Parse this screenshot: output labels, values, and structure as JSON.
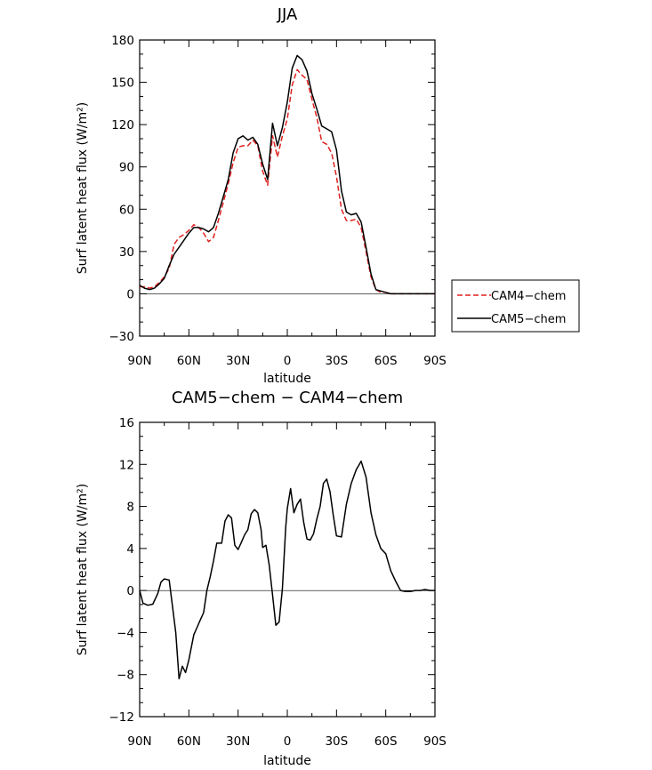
{
  "chart_data": [
    {
      "type": "line",
      "title": "JJA",
      "xlabel": "latitude",
      "ylabel": "Surf latent heat flux (W/m²)",
      "xlim": [
        90,
        -90
      ],
      "ylim": [
        -30,
        180
      ],
      "x_ticks": [
        90,
        60,
        30,
        0,
        -30,
        -60,
        -90
      ],
      "x_tick_labels": [
        "90N",
        "60N",
        "30N",
        "0",
        "30S",
        "60S",
        "90S"
      ],
      "y_ticks": [
        -30,
        0,
        30,
        60,
        90,
        120,
        150,
        180
      ],
      "y_tick_labels": [
        "−30",
        "0",
        "30",
        "60",
        "90",
        "120",
        "150",
        "180"
      ],
      "legend_position": "outside-right",
      "series": [
        {
          "name": "CAM4−chem",
          "color": "#e02020",
          "dash": "dashed",
          "x": [
            90,
            87,
            84,
            81,
            78,
            75,
            72,
            69,
            66,
            63,
            60,
            57,
            54,
            51,
            48,
            45,
            42,
            39,
            36,
            33,
            30,
            27,
            24,
            21,
            18,
            15,
            12,
            9,
            6,
            3,
            0,
            -3,
            -6,
            -9,
            -12,
            -15,
            -18,
            -21,
            -24,
            -27,
            -30,
            -33,
            -36,
            -39,
            -42,
            -45,
            -48,
            -51,
            -54,
            -57,
            -60,
            -63,
            -66,
            -69,
            -72,
            -75,
            -78,
            -81,
            -84,
            -87,
            -90
          ],
          "y": [
            5,
            5,
            4,
            5,
            8,
            12,
            18,
            35,
            40,
            42,
            45,
            49,
            47,
            43,
            37,
            40,
            52,
            65,
            78,
            93,
            104,
            105,
            105,
            109,
            105,
            87,
            77,
            112,
            97,
            112,
            124,
            148,
            159,
            155,
            152,
            138,
            125,
            108,
            106,
            100,
            83,
            60,
            52,
            52,
            53,
            47,
            30,
            12,
            3,
            1,
            1,
            0,
            0,
            0,
            0,
            0,
            0,
            0,
            0,
            0,
            0
          ]
        },
        {
          "name": "CAM5−chem",
          "color": "#000000",
          "dash": "solid",
          "x": [
            90,
            87,
            84,
            81,
            78,
            75,
            72,
            69,
            66,
            63,
            60,
            57,
            54,
            51,
            48,
            45,
            42,
            39,
            36,
            33,
            30,
            27,
            24,
            21,
            18,
            15,
            12,
            9,
            6,
            3,
            0,
            -3,
            -6,
            -9,
            -12,
            -15,
            -18,
            -21,
            -24,
            -27,
            -30,
            -33,
            -36,
            -39,
            -42,
            -45,
            -48,
            -51,
            -54,
            -57,
            -60,
            -63,
            -66,
            -69,
            -72,
            -75,
            -78,
            -81,
            -84,
            -87,
            -90
          ],
          "y": [
            6,
            4,
            3,
            4,
            7,
            11,
            20,
            28,
            33,
            38,
            43,
            47,
            47,
            46,
            44,
            47,
            57,
            69,
            81,
            100,
            110,
            112,
            109,
            111,
            106,
            92,
            81,
            121,
            105,
            118,
            136,
            160,
            169,
            166,
            158,
            142,
            131,
            119,
            117,
            115,
            102,
            73,
            58,
            56,
            57,
            51,
            33,
            14,
            3,
            2,
            1,
            0,
            0,
            0,
            0,
            0,
            0,
            0,
            0,
            0,
            0
          ]
        }
      ]
    },
    {
      "type": "line",
      "title": "CAM5−chem − CAM4−chem",
      "xlabel": "latitude",
      "ylabel": "Surf latent heat flux (W/m²)",
      "xlim": [
        90,
        -90
      ],
      "ylim": [
        -12,
        16
      ],
      "x_ticks": [
        90,
        60,
        30,
        0,
        -30,
        -60,
        -90
      ],
      "x_tick_labels": [
        "90N",
        "60N",
        "30N",
        "0",
        "30S",
        "60S",
        "90S"
      ],
      "y_ticks": [
        -12,
        -8,
        -4,
        0,
        4,
        8,
        12,
        16
      ],
      "y_tick_labels": [
        "−12",
        "−8",
        "−4",
        "0",
        "4",
        "8",
        "12",
        "16"
      ],
      "series": [
        {
          "color": "#000000",
          "dash": "solid",
          "x": [
            90,
            88,
            85,
            82,
            79,
            77,
            75,
            72,
            70,
            68,
            66,
            64,
            62,
            60,
            57,
            55,
            53,
            51,
            49,
            47,
            45,
            43,
            40,
            38,
            36,
            34,
            32,
            30,
            28,
            26,
            24,
            22,
            20,
            18,
            16,
            15,
            13,
            11,
            9,
            7,
            5,
            3,
            1,
            0,
            -2,
            -4,
            -6,
            -8,
            -10,
            -12,
            -14,
            -16,
            -18,
            -20,
            -22,
            -24,
            -26,
            -28,
            -30,
            -33,
            -36,
            -39,
            -42,
            -45,
            -48,
            -51,
            -54,
            -57,
            -60,
            -63,
            -66,
            -69,
            -72,
            -75,
            -78,
            -81,
            -84,
            -87,
            -90
          ],
          "y": [
            0,
            -1.2,
            -1.4,
            -1.3,
            -0.3,
            0.8,
            1.1,
            1.0,
            -1.5,
            -4.0,
            -8.4,
            -7.2,
            -7.8,
            -6.6,
            -4.2,
            -3.5,
            -2.8,
            -2.1,
            0.0,
            1.3,
            2.8,
            4.5,
            4.5,
            6.6,
            7.2,
            6.9,
            4.3,
            3.9,
            4.6,
            5.3,
            5.8,
            7.3,
            7.7,
            7.4,
            5.8,
            4.1,
            4.3,
            2.4,
            -0.4,
            -3.3,
            -3.0,
            0.2,
            6.0,
            7.8,
            9.7,
            7.4,
            8.2,
            8.7,
            6.5,
            4.9,
            4.8,
            5.4,
            6.8,
            8.0,
            10.2,
            10.6,
            9.4,
            7.2,
            5.2,
            5.1,
            8.2,
            10.2,
            11.5,
            12.3,
            10.8,
            7.4,
            5.3,
            4.0,
            3.5,
            1.9,
            0.9,
            0.0,
            -0.1,
            -0.1,
            0.0,
            0.0,
            0.1,
            0.0,
            0.0
          ]
        }
      ]
    }
  ]
}
